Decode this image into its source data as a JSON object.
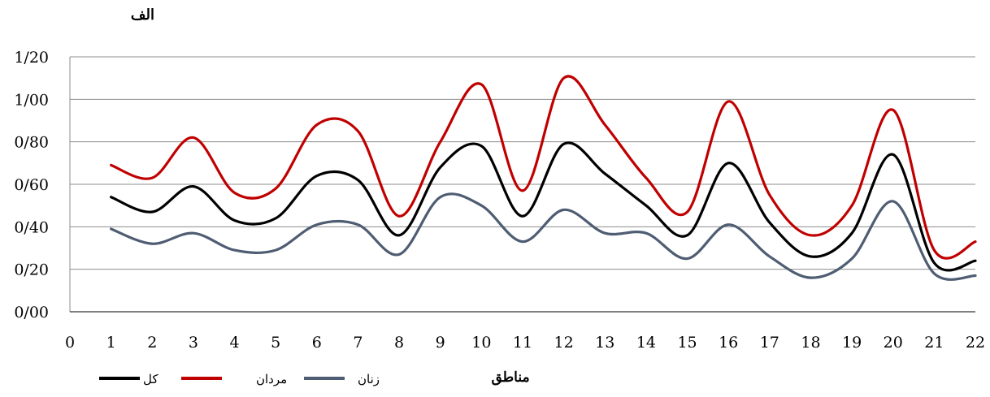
{
  "chart_data": {
    "type": "line",
    "title": "الف",
    "xlabel": "مناطق",
    "ylabel": "",
    "x": [
      1,
      2,
      3,
      4,
      5,
      6,
      7,
      8,
      9,
      10,
      11,
      12,
      13,
      14,
      15,
      16,
      17,
      18,
      19,
      20,
      21,
      22
    ],
    "x_ticks": [
      "0",
      "1",
      "2",
      "3",
      "4",
      "5",
      "6",
      "7",
      "8",
      "9",
      "10",
      "11",
      "12",
      "13",
      "14",
      "15",
      "16",
      "17",
      "18",
      "19",
      "20",
      "21",
      "22"
    ],
    "y_ticks": [
      "0/00",
      "0/20",
      "0/40",
      "0/60",
      "0/80",
      "1/00",
      "1/20"
    ],
    "xlim": [
      0,
      22
    ],
    "ylim": [
      0,
      1.2
    ],
    "grid": "horizontal",
    "legend_position": "bottom-left",
    "series": [
      {
        "name": "کل",
        "color": "#000000",
        "values": [
          0.54,
          0.47,
          0.59,
          0.43,
          0.44,
          0.64,
          0.62,
          0.36,
          0.68,
          0.78,
          0.45,
          0.79,
          0.65,
          0.5,
          0.36,
          0.7,
          0.42,
          0.26,
          0.37,
          0.74,
          0.23,
          0.24
        ]
      },
      {
        "name": "مردان",
        "color": "#c00000",
        "values": [
          0.69,
          0.63,
          0.82,
          0.56,
          0.58,
          0.88,
          0.85,
          0.45,
          0.8,
          1.07,
          0.57,
          1.1,
          0.88,
          0.63,
          0.47,
          0.99,
          0.55,
          0.36,
          0.5,
          0.95,
          0.29,
          0.33
        ]
      },
      {
        "name": "زنان",
        "color": "#4f5d73",
        "values": [
          0.39,
          0.32,
          0.37,
          0.29,
          0.29,
          0.41,
          0.41,
          0.27,
          0.54,
          0.5,
          0.33,
          0.48,
          0.37,
          0.37,
          0.25,
          0.41,
          0.26,
          0.16,
          0.25,
          0.52,
          0.18,
          0.17
        ]
      }
    ]
  }
}
